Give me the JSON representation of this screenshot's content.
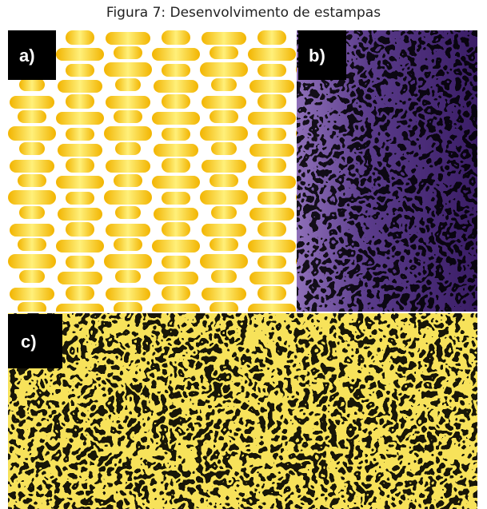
{
  "caption": "Figura 7: Desenvolvimento de estampas",
  "panels": [
    {
      "label": "a)"
    },
    {
      "label": "b)"
    },
    {
      "label": "c)"
    }
  ]
}
